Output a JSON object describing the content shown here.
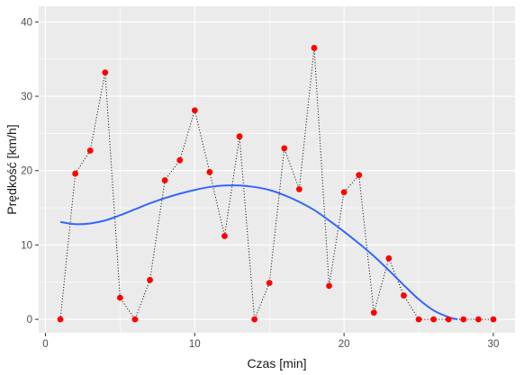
{
  "chart_data": {
    "type": "scatter",
    "title": "",
    "xlabel": "Czas [min]",
    "ylabel": "Prędkość [km/h]",
    "xlim": [
      -0.45,
      31.45
    ],
    "ylim": [
      -1.8,
      42.1
    ],
    "x_ticks": [
      0,
      10,
      20,
      30
    ],
    "y_ticks": [
      0,
      10,
      20,
      30,
      40
    ],
    "grid": true,
    "panel_background": "#ebebeb",
    "grid_color": "#ffffff",
    "series": [
      {
        "style": "points-with-dotted-line",
        "color": "#ff0000",
        "x": [
          1,
          2,
          3,
          4,
          5,
          6,
          7,
          8,
          9,
          10,
          11,
          12,
          13,
          14,
          15,
          16,
          17,
          18,
          19,
          20,
          21,
          22,
          23,
          24,
          25,
          26,
          27,
          28,
          29,
          30
        ],
        "y": [
          0,
          19.6,
          22.7,
          33.2,
          2.9,
          0,
          5.3,
          18.7,
          21.4,
          28.1,
          19.8,
          11.2,
          24.6,
          0,
          4.9,
          23.0,
          17.5,
          36.5,
          4.5,
          17.1,
          19.4,
          0.9,
          8.2,
          3.2,
          0,
          0,
          0,
          0,
          0,
          0
        ]
      },
      {
        "style": "smooth-line",
        "color": "#3366ff",
        "x": [
          1,
          2,
          3,
          4,
          5,
          6,
          7,
          8,
          9,
          10,
          11,
          12,
          13,
          14,
          15,
          16,
          17,
          18,
          19,
          20,
          21,
          22,
          23,
          24,
          25,
          26,
          27,
          27.6
        ],
        "y": [
          13.1,
          12.8,
          12.9,
          13.3,
          14.0,
          14.8,
          15.6,
          16.3,
          16.9,
          17.4,
          17.8,
          18.0,
          18.0,
          17.8,
          17.4,
          16.7,
          15.8,
          14.7,
          13.3,
          11.8,
          10.2,
          8.5,
          6.6,
          4.6,
          2.7,
          1.2,
          0.3,
          0
        ]
      }
    ]
  }
}
